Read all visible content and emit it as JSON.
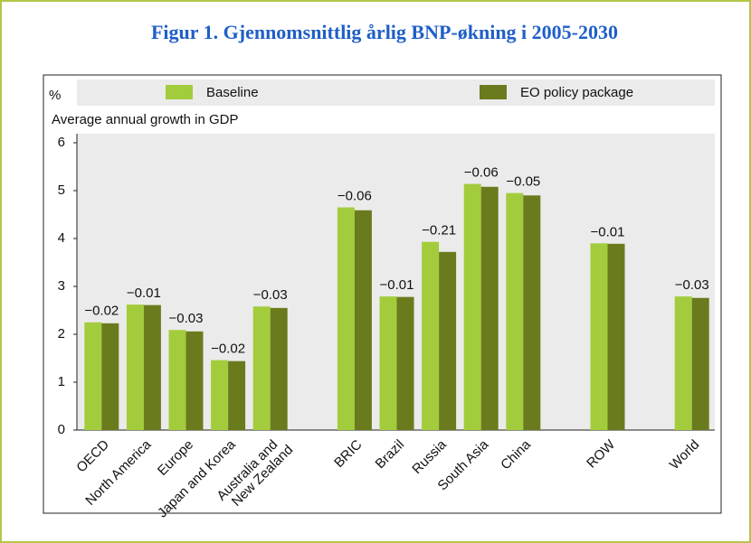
{
  "chart_data": {
    "type": "bar",
    "title": "Figur 1.  Gjennomsnittlig årlig BNP-økning i 2005-2030",
    "y_unit": "%",
    "ylabel": "Average annual growth in GDP",
    "categories": [
      "OECD",
      "North America",
      "Europe",
      "Japan and Korea",
      "Australia and\nNew Zealand",
      null,
      "BRIC",
      "Brazil",
      "Russia",
      "South Asia",
      "China",
      null,
      "ROW",
      null,
      "World"
    ],
    "series": [
      {
        "name": "Baseline",
        "color": "#a3cc3c",
        "values": [
          2.25,
          2.62,
          2.09,
          1.46,
          2.58,
          null,
          4.65,
          2.79,
          3.93,
          5.14,
          4.95,
          null,
          3.9,
          null,
          2.79
        ]
      },
      {
        "name": "EO policy package",
        "color": "#6a7b1e",
        "values": [
          2.23,
          2.61,
          2.06,
          1.44,
          2.55,
          null,
          4.59,
          2.78,
          3.72,
          5.08,
          4.9,
          null,
          3.89,
          null,
          2.76
        ]
      }
    ],
    "differences": {
      "values": [
        -0.02,
        -0.01,
        -0.03,
        -0.02,
        -0.03,
        null,
        -0.06,
        -0.01,
        -0.21,
        -0.06,
        -0.05,
        null,
        -0.01,
        null,
        -0.03
      ],
      "value_labels": [
        "−0.02",
        "−0.01",
        "−0.03",
        "−0.02",
        "−0.03",
        null,
        "−0.06",
        "−0.01",
        "−0.21",
        "−0.06",
        "−0.05",
        null,
        "−0.01",
        null,
        "−0.03"
      ]
    },
    "ylim": [
      0,
      6
    ],
    "yticks": [
      0,
      1,
      2,
      3,
      4,
      5,
      6
    ],
    "grid": false
  }
}
